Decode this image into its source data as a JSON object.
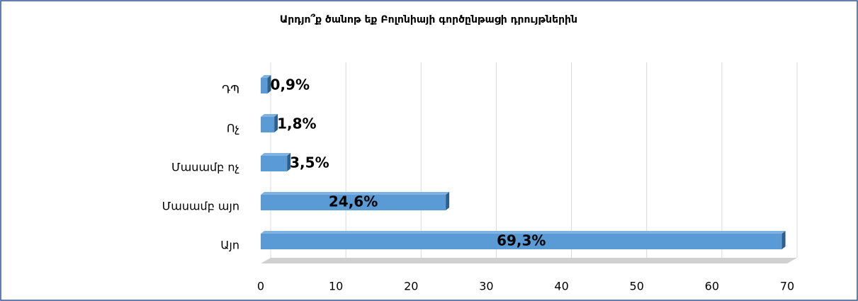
{
  "chart_data": {
    "type": "bar3d_horizontal",
    "title": "Արդյո՞ք ծանոթ  եք Բոլոնիայի գործընթացի դրույթներին",
    "categories": [
      "ԴՊ",
      "Ոչ",
      "Մասամբ ոչ",
      "Մասամբ այո",
      "Այո"
    ],
    "values": [
      0.9,
      1.8,
      3.5,
      24.6,
      69.3
    ],
    "value_labels": [
      "0,9%",
      "1,8%",
      "3,5%",
      "24,6%",
      "69,3%"
    ],
    "color": "#5b9bd5",
    "xlim": [
      0,
      70
    ],
    "xticks": [
      0,
      10,
      20,
      30,
      40,
      50,
      60,
      70
    ],
    "grid": true
  }
}
